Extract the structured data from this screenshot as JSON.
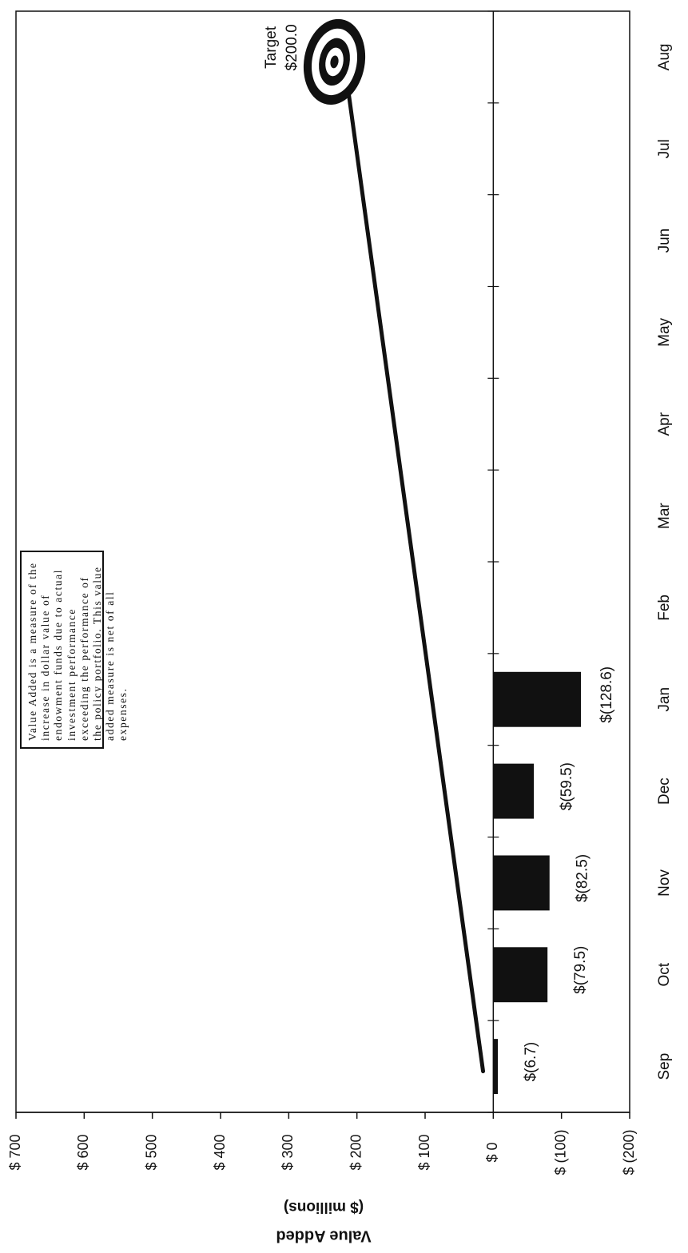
{
  "chart_data": {
    "type": "bar",
    "orientation": "rotated 90 degrees counter-clockwise",
    "ylabel": "Value Added",
    "ylabel_unit": "($ millions)",
    "ylim": [
      -200,
      700
    ],
    "y_ticks": [
      700,
      600,
      500,
      400,
      300,
      200,
      100,
      0,
      -100,
      -200
    ],
    "y_tick_labels": [
      "$ 700",
      "$ 600",
      "$ 500",
      "$ 400",
      "$ 300",
      "$ 200",
      "$ 100",
      "$ 0",
      "$ (100)",
      "$ (200)"
    ],
    "categories": [
      "Sep",
      "Oct",
      "Nov",
      "Dec",
      "Jan",
      "Feb",
      "Mar",
      "Apr",
      "May",
      "Jun",
      "Jul",
      "Aug"
    ],
    "series": [
      {
        "values": [
          -6.7,
          -79.5,
          -82.5,
          -59.5,
          -128.6,
          null,
          null,
          null,
          null,
          null,
          null,
          null
        ],
        "labels": [
          "$(6.7)",
          "$(79.5)",
          "$(82.5)",
          "$(59.5)",
          "$(128.6)"
        ]
      }
    ],
    "target_line": {
      "from": {
        "category": "Sep",
        "value": 15
      },
      "to": {
        "category": "Aug",
        "value": 200
      }
    },
    "target_label": "Target",
    "target_value_label": "$200.0",
    "note": "Value Added is a measure of the increase in dollar value of endowment funds due to actual investment performance exceeding the performance of the policy portfolio. This value added measure is net of all expenses.",
    "grid": false
  }
}
